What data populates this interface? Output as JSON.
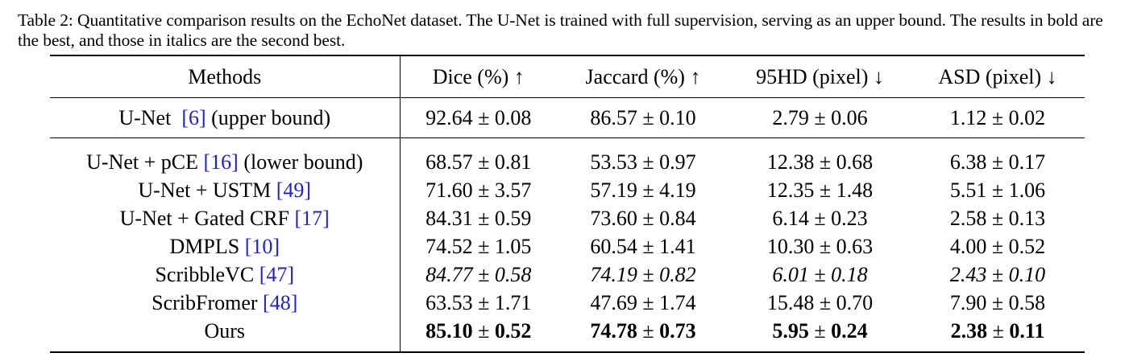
{
  "caption": "Table 2: Quantitative comparison results on the EchoNet dataset. The U-Net is trained with full supervision, serving as an upper bound. The results in bold are the best, and those in italics are the second best.",
  "headers": {
    "methods": "Methods",
    "dice": "Dice (%) ↑",
    "jaccard": "Jaccard (%) ↑",
    "hd95": "95HD (pixel) ↓",
    "asd": "ASD (pixel) ↓"
  },
  "upper": {
    "name": "U-Net",
    "cite": "[6]",
    "suffix": "(upper bound)",
    "dice": "92.64 ± 0.08",
    "jaccard": "86.57 ± 0.10",
    "hd95": "2.79 ± 0.06",
    "asd": "1.12 ± 0.02"
  },
  "rows": [
    {
      "name": "U-Net + pCE",
      "cite": "[16]",
      "suffix": "(lower bound)",
      "dice": "68.57 ± 0.81",
      "jaccard": "53.53 ± 0.97",
      "hd95": "12.38 ± 0.68",
      "asd": "6.38 ± 0.17",
      "style": ""
    },
    {
      "name": "U-Net + USTM",
      "cite": "[49]",
      "suffix": "",
      "dice": "71.60 ± 3.57",
      "jaccard": "57.19 ± 4.19",
      "hd95": "12.35 ± 1.48",
      "asd": "5.51 ± 1.06",
      "style": ""
    },
    {
      "name": "U-Net + Gated CRF",
      "cite": "[17]",
      "suffix": "",
      "dice": "84.31 ± 0.59",
      "jaccard": "73.60 ± 0.84",
      "hd95": "6.14 ± 0.23",
      "asd": "2.58 ± 0.13",
      "style": ""
    },
    {
      "name": "DMPLS",
      "cite": "[10]",
      "suffix": "",
      "dice": "74.52 ± 1.05",
      "jaccard": "60.54 ± 1.41",
      "hd95": "10.30 ± 0.63",
      "asd": "4.00 ± 0.52",
      "style": ""
    },
    {
      "name": "ScribbleVC",
      "cite": "[47]",
      "suffix": "",
      "dice": "84.77 ± 0.58",
      "jaccard": "74.19 ± 0.82",
      "hd95": "6.01 ± 0.18",
      "asd": "2.43 ± 0.10",
      "style": "italic"
    },
    {
      "name": "ScribFromer",
      "cite": "[48]",
      "suffix": "",
      "dice": "63.53 ± 1.71",
      "jaccard": "47.69 ± 1.74",
      "hd95": "15.48 ± 0.70",
      "asd": "7.90 ± 0.58",
      "style": ""
    },
    {
      "name": "Ours",
      "cite": "",
      "suffix": "",
      "dice": "85.10 ± 0.52",
      "jaccard": "74.78 ± 0.73",
      "hd95": "5.95 ± 0.24",
      "asd": "2.38 ± 0.11",
      "style": "bold"
    }
  ]
}
